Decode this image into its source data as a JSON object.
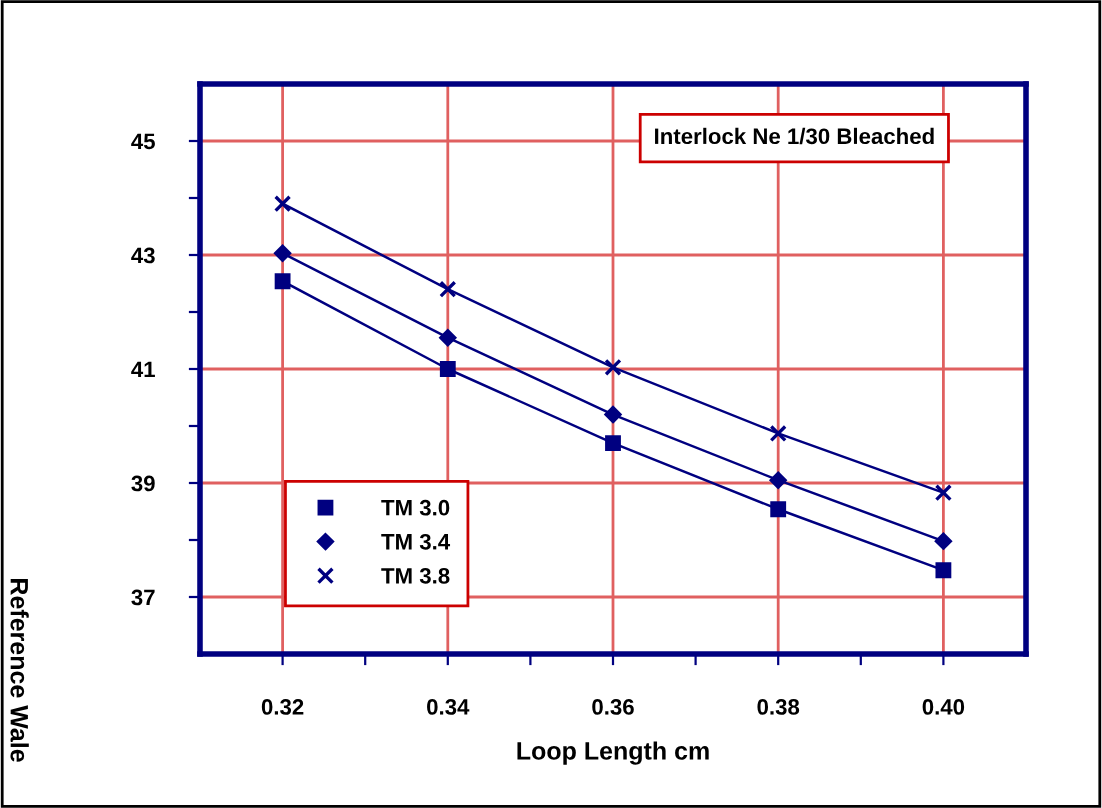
{
  "chart_data": {
    "type": "line",
    "title": "Interlock Ne 1/30 Bleached",
    "xlabel": "Loop Length cm",
    "ylabel": "Reference Wale",
    "x": [
      0.32,
      0.34,
      0.36,
      0.38,
      0.4
    ],
    "series": [
      {
        "name": "TM 3.0",
        "color": "#000080",
        "marker": "square",
        "values": [
          42.54,
          41.0,
          39.7,
          38.54,
          37.47
        ]
      },
      {
        "name": "TM 3.4",
        "color": "#000080",
        "marker": "diamond",
        "values": [
          43.03,
          41.55,
          40.2,
          39.05,
          37.98
        ]
      },
      {
        "name": "TM 3.8",
        "color": "#000080",
        "marker": "cross",
        "values": [
          43.9,
          42.4,
          41.03,
          39.87,
          38.83
        ]
      }
    ],
    "xlim": [
      0.31,
      0.41
    ],
    "ylim": [
      36,
      46
    ],
    "xticks": [
      {
        "value": 0.32,
        "label": "0.32"
      },
      {
        "value": 0.33,
        "label": null
      },
      {
        "value": 0.34,
        "label": "0.34"
      },
      {
        "value": 0.35,
        "label": null
      },
      {
        "value": 0.36,
        "label": "0.36"
      },
      {
        "value": 0.37,
        "label": null
      },
      {
        "value": 0.38,
        "label": "0.38"
      },
      {
        "value": 0.39,
        "label": null
      },
      {
        "value": 0.4,
        "label": "0.40"
      }
    ],
    "yticks": [
      {
        "value": 37,
        "label": "37"
      },
      {
        "value": 38,
        "label": null
      },
      {
        "value": 39,
        "label": "39"
      },
      {
        "value": 40,
        "label": null
      },
      {
        "value": 41,
        "label": "41"
      },
      {
        "value": 42,
        "label": null
      },
      {
        "value": 43,
        "label": "43"
      },
      {
        "value": 44,
        "label": null
      },
      {
        "value": 45,
        "label": "45"
      }
    ],
    "grid": true,
    "legend": "bottom left",
    "line_style": "solid"
  }
}
